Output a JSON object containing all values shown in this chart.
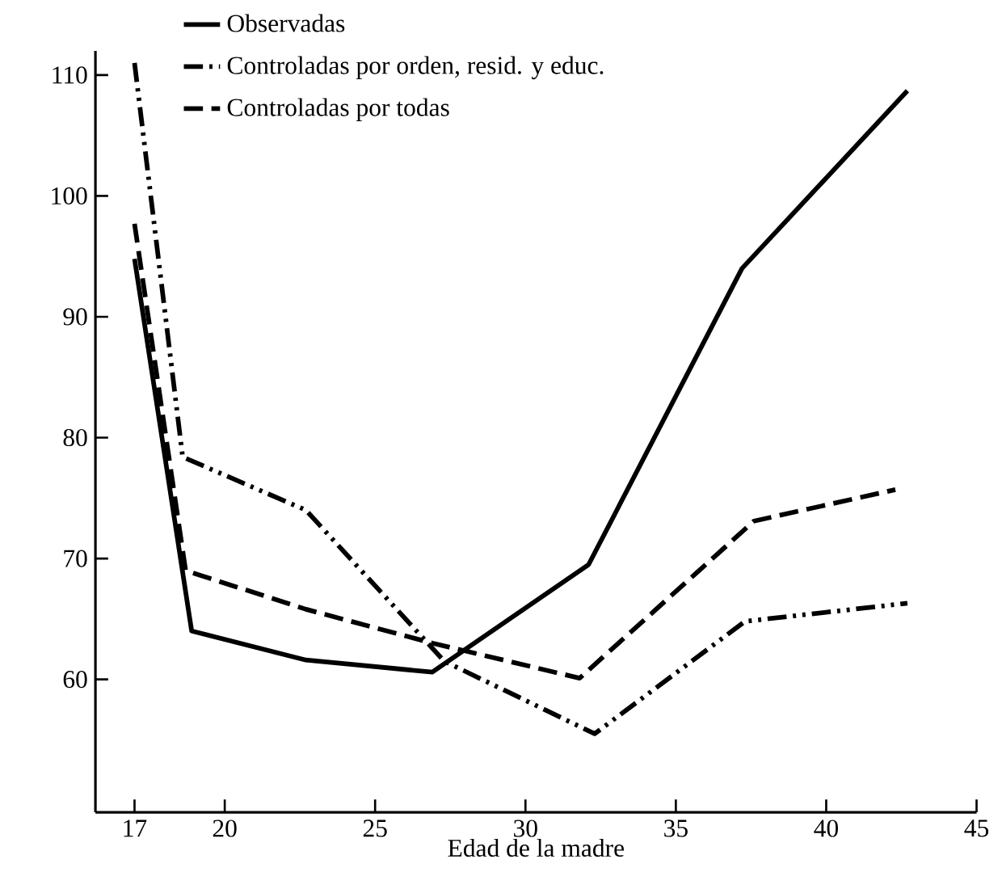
{
  "chart_data": {
    "type": "line",
    "xlabel": "Edad de la madre",
    "xlim": [
      15.7,
      45
    ],
    "xticks": [
      17,
      20,
      25,
      30,
      35,
      40,
      45
    ],
    "ylim": [
      49,
      112
    ],
    "yticks": [
      60,
      70,
      80,
      90,
      100,
      110
    ],
    "legend": "top left",
    "grid": false,
    "series": [
      {
        "name": "Observadas",
        "color": "#000000",
        "line_style": "solid",
        "x": [
          17,
          18.9,
          22.7,
          26.9,
          32.1,
          37.2,
          42.7
        ],
        "values": [
          94.8,
          64,
          61.6,
          60.6,
          69.5,
          94,
          108.7
        ]
      },
      {
        "name": "Controladas por orden, resid. y educ.",
        "color": "#000000",
        "line_style": "dashdotdotted",
        "x": [
          17,
          18.6,
          22.7,
          27.3,
          32.3,
          37.3,
          42.7
        ],
        "values": [
          111,
          78.4,
          74,
          61.5,
          55.5,
          64.8,
          66.3
        ]
      },
      {
        "name": "Controladas por todas",
        "color": "#000000",
        "line_style": "dashed",
        "x": [
          17,
          18.7,
          22.7,
          26.9,
          31.8,
          37.6,
          42.3
        ],
        "values": [
          97.7,
          69,
          65.8,
          63,
          60.1,
          73.1,
          75.7
        ]
      }
    ]
  }
}
